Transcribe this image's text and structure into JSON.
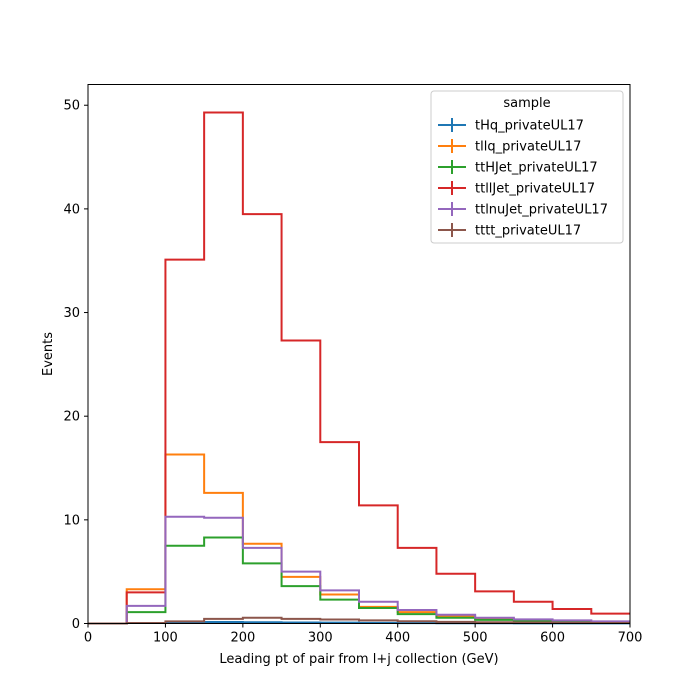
{
  "chart_data": {
    "type": "histogram-step",
    "xlabel": "Leading pt of pair from l+j collection (GeV)",
    "ylabel": "Events",
    "xlim": [
      0,
      700
    ],
    "ylim": [
      0,
      52
    ],
    "x_ticks": [
      0,
      100,
      200,
      300,
      400,
      500,
      600,
      700
    ],
    "y_ticks": [
      0,
      10,
      20,
      30,
      40,
      50
    ],
    "grid": false,
    "legend": {
      "title": "sample",
      "placement": "top-right"
    },
    "bin_edges": [
      0,
      50,
      100,
      150,
      200,
      250,
      300,
      350,
      400,
      450,
      500,
      550,
      600,
      650,
      700
    ],
    "series": [
      {
        "name": "tHq_privateUL17",
        "color": "#1f77b4",
        "values": [
          0,
          0.05,
          0.1,
          0.15,
          0.12,
          0.1,
          0.08,
          0.06,
          0.04,
          0.03,
          0.02,
          0.015,
          0.01,
          0.01
        ]
      },
      {
        "name": "tllq_privateUL17",
        "color": "#ff7f0e",
        "values": [
          0,
          3.3,
          16.3,
          12.6,
          7.7,
          4.5,
          2.8,
          1.6,
          1.1,
          0.7,
          0.45,
          0.3,
          0.2,
          0.15
        ]
      },
      {
        "name": "ttHJet_privateUL17",
        "color": "#2ca02c",
        "values": [
          0,
          1.1,
          7.5,
          8.3,
          5.8,
          3.6,
          2.3,
          1.5,
          0.9,
          0.55,
          0.35,
          0.25,
          0.15,
          0.1
        ]
      },
      {
        "name": "ttllJet_privateUL17",
        "color": "#d62728",
        "values": [
          0,
          3.0,
          35.1,
          49.3,
          39.5,
          27.3,
          17.5,
          11.4,
          7.3,
          4.8,
          3.1,
          2.1,
          1.4,
          0.95
        ]
      },
      {
        "name": "ttlnuJet_privateUL17",
        "color": "#9467bd",
        "values": [
          0,
          1.7,
          10.3,
          10.2,
          7.3,
          5.0,
          3.2,
          2.1,
          1.3,
          0.85,
          0.55,
          0.4,
          0.3,
          0.2
        ]
      },
      {
        "name": "tttt_privateUL17",
        "color": "#8c564b",
        "values": [
          0,
          0.05,
          0.2,
          0.45,
          0.55,
          0.45,
          0.38,
          0.3,
          0.22,
          0.16,
          0.12,
          0.1,
          0.07,
          0.05
        ]
      }
    ]
  }
}
